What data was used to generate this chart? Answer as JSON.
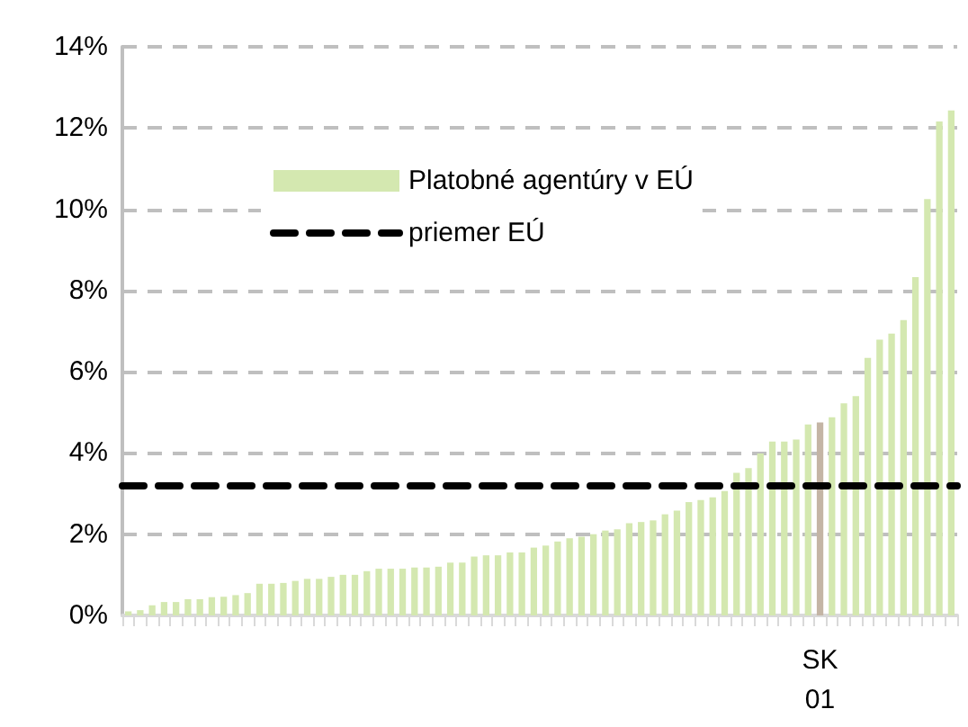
{
  "chart_data": {
    "type": "bar",
    "categories": [
      null,
      null,
      null,
      null,
      null,
      null,
      null,
      null,
      null,
      null,
      null,
      null,
      null,
      null,
      null,
      null,
      null,
      null,
      null,
      null,
      null,
      null,
      null,
      null,
      null,
      null,
      null,
      null,
      null,
      null,
      null,
      null,
      null,
      null,
      null,
      null,
      null,
      null,
      null,
      null,
      null,
      null,
      null,
      null,
      null,
      null,
      null,
      null,
      null,
      null,
      null,
      null,
      null,
      null,
      null,
      null,
      null,
      null,
      "SK\n01",
      null,
      null,
      null,
      null,
      null,
      null,
      null,
      null,
      null,
      null,
      null
    ],
    "series": [
      {
        "name": "Platobné agentúry v EÚ",
        "color": "#d4e8b0",
        "colors": [
          "#d4e8b0",
          "#d4e8b0",
          "#d4e8b0",
          "#d4e8b0",
          "#d4e8b0",
          "#d4e8b0",
          "#d4e8b0",
          "#d4e8b0",
          "#d4e8b0",
          "#d4e8b0",
          "#d4e8b0",
          "#d4e8b0",
          "#d4e8b0",
          "#d4e8b0",
          "#d4e8b0",
          "#d4e8b0",
          "#d4e8b0",
          "#d4e8b0",
          "#d4e8b0",
          "#d4e8b0",
          "#d4e8b0",
          "#d4e8b0",
          "#d4e8b0",
          "#d4e8b0",
          "#d4e8b0",
          "#d4e8b0",
          "#d4e8b0",
          "#d4e8b0",
          "#d4e8b0",
          "#d4e8b0",
          "#d4e8b0",
          "#d4e8b0",
          "#d4e8b0",
          "#d4e8b0",
          "#d4e8b0",
          "#d4e8b0",
          "#d4e8b0",
          "#d4e8b0",
          "#d4e8b0",
          "#d4e8b0",
          "#d4e8b0",
          "#d4e8b0",
          "#d4e8b0",
          "#d4e8b0",
          "#d4e8b0",
          "#d4e8b0",
          "#d4e8b0",
          "#d4e8b0",
          "#d4e8b0",
          "#d4e8b0",
          "#d4e8b0",
          "#d4e8b0",
          "#d4e8b0",
          "#d4e8b0",
          "#d4e8b0",
          "#d4e8b0",
          "#d4e8b0",
          "#d4e8b0",
          "#c4b5a5",
          "#d4e8b0",
          "#d4e8b0",
          "#d4e8b0",
          "#d4e8b0",
          "#d4e8b0",
          "#d4e8b0",
          "#d4e8b0",
          "#d4e8b0",
          "#d4e8b0",
          "#d4e8b0",
          "#d4e8b0"
        ],
        "values": [
          0.1,
          0.13,
          0.25,
          0.33,
          0.33,
          0.4,
          0.4,
          0.45,
          0.46,
          0.5,
          0.55,
          0.78,
          0.78,
          0.8,
          0.85,
          0.9,
          0.9,
          0.95,
          1.0,
          1.0,
          1.09,
          1.15,
          1.15,
          1.15,
          1.18,
          1.18,
          1.2,
          1.3,
          1.3,
          1.45,
          1.48,
          1.48,
          1.55,
          1.55,
          1.67,
          1.72,
          1.82,
          1.9,
          1.94,
          2.0,
          2.09,
          2.12,
          2.27,
          2.3,
          2.34,
          2.49,
          2.58,
          2.79,
          2.84,
          2.91,
          3.06,
          3.51,
          3.63,
          3.99,
          4.28,
          4.28,
          4.33,
          4.7,
          4.75,
          4.88,
          5.22,
          5.4,
          6.34,
          6.79,
          6.94,
          7.27,
          8.33,
          10.25,
          12.16,
          12.43
        ]
      }
    ],
    "ref_lines": [
      {
        "axis": "y",
        "value": 3.2,
        "label": "priemer EÚ",
        "color": "#000000",
        "line_style": "dashed"
      }
    ],
    "ylim": [
      0,
      14
    ],
    "yticks": [
      {
        "value": 0,
        "label": "0%"
      },
      {
        "value": 2,
        "label": "2%"
      },
      {
        "value": 4,
        "label": "4%"
      },
      {
        "value": 6,
        "label": "6%"
      },
      {
        "value": 8,
        "label": "8%"
      },
      {
        "value": 10,
        "label": "10%"
      },
      {
        "value": 12,
        "label": "12%"
      },
      {
        "value": 14,
        "label": "14%"
      }
    ],
    "grid": "y",
    "legend": "top left"
  }
}
